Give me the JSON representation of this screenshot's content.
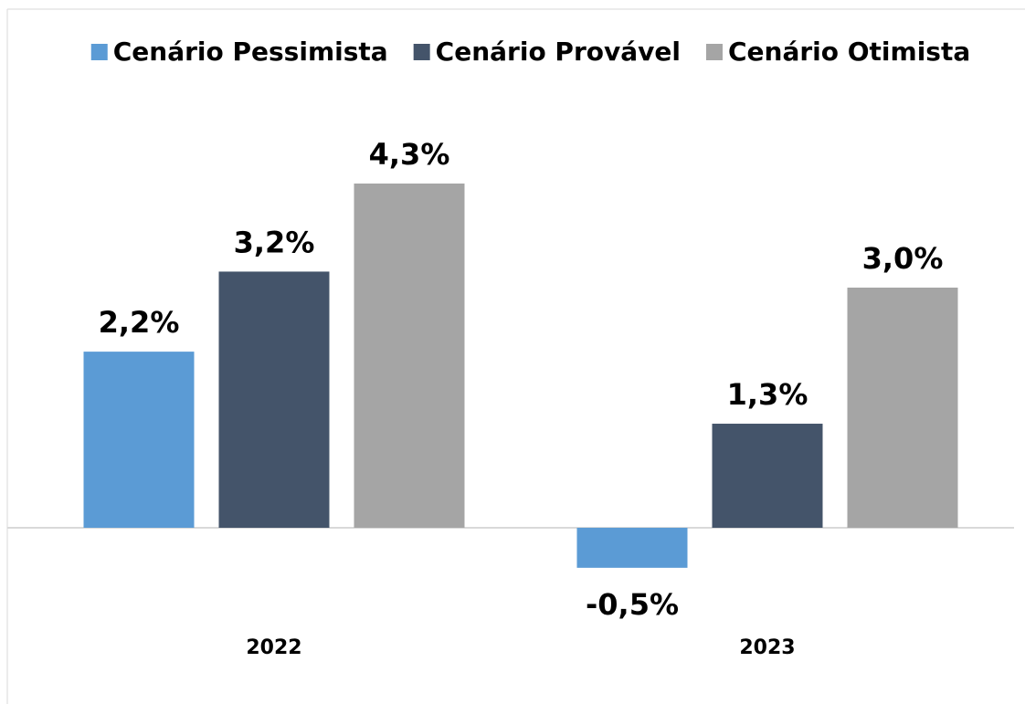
{
  "chart_data": {
    "type": "bar",
    "categories": [
      "2022",
      "2023"
    ],
    "series": [
      {
        "name": "Cenário Pessimista",
        "color": "#5b9bd5",
        "values": [
          2.2,
          -0.5
        ],
        "value_labels": [
          "2,2%",
          "-0,5%"
        ]
      },
      {
        "name": "Cenário Provável",
        "color": "#44546a",
        "values": [
          3.2,
          1.3
        ],
        "value_labels": [
          "3,2%",
          "1,3%"
        ]
      },
      {
        "name": "Cenário Otimista",
        "color": "#a5a5a5",
        "values": [
          4.3,
          3.0
        ],
        "value_labels": [
          "4,3%",
          "3,0%"
        ]
      }
    ],
    "legend": "top"
  }
}
